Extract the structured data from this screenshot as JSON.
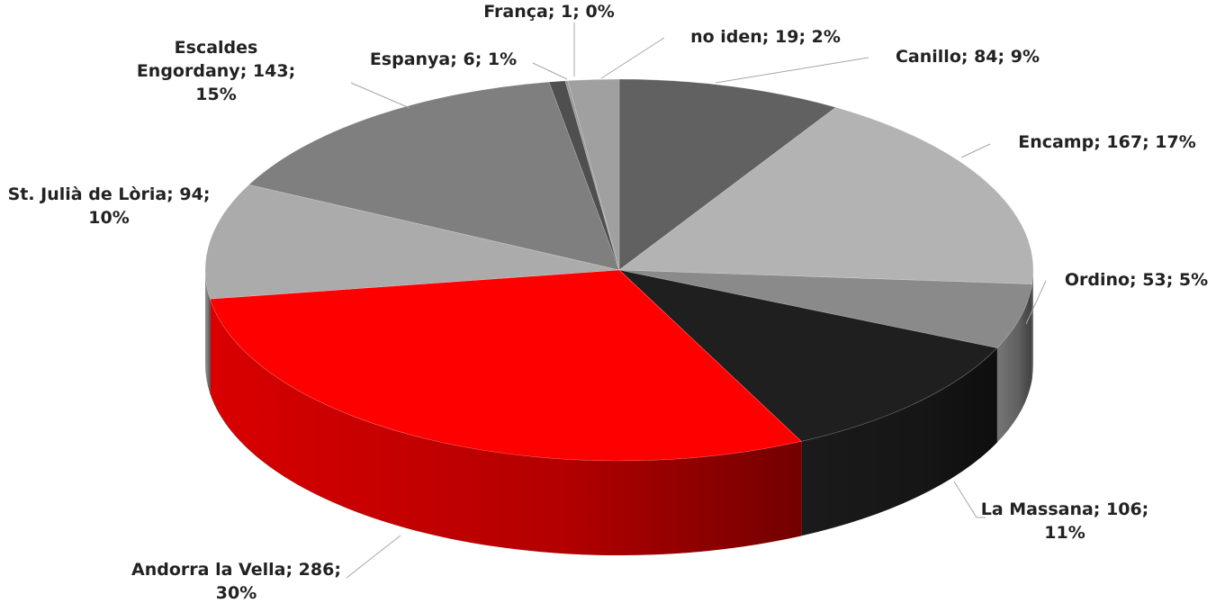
{
  "chart_data": {
    "type": "pie3d",
    "values": [
      84,
      167,
      53,
      106,
      286,
      94,
      143,
      6,
      1,
      19
    ],
    "value_labels": [
      "Canillo; 84; 9%",
      "Encamp; 167; 17%",
      "Ordino; 53; 5%",
      "La Massana; 106; 11%",
      "Andorra la Vella; 286; 30%",
      "St. Julià de Lòria; 94; 10%",
      "Escaldes Engordany; 143; 15%",
      "Espanya; 6; 1%",
      "França; 1; 0%",
      "no iden; 19; 2%"
    ],
    "colors": [
      "#616161",
      "#b3b3b3",
      "#8a8a8a",
      "#1f1f1f",
      "#ff0000",
      "#ababab",
      "#7f7f7f",
      "#4f4f4f",
      "#9a9a9a",
      "#a0a0a0"
    ]
  }
}
